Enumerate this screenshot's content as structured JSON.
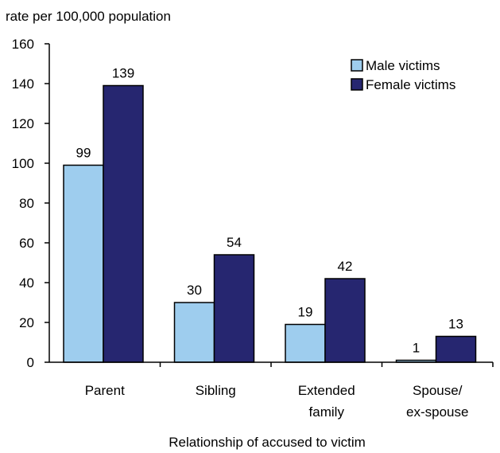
{
  "chart_data": {
    "type": "bar",
    "title": "",
    "ylabel": "rate per 100,000 population",
    "xlabel": "Relationship of accused to victim",
    "ylim": [
      0,
      160
    ],
    "yticks": [
      0,
      20,
      40,
      60,
      80,
      100,
      120,
      140,
      160
    ],
    "categories": [
      [
        "Parent"
      ],
      [
        "Sibling"
      ],
      [
        "Extended",
        "family"
      ],
      [
        "Spouse/",
        "ex-spouse"
      ]
    ],
    "series": [
      {
        "name": "Male victims",
        "values": [
          99,
          30,
          19,
          1
        ],
        "color": "#9ecdee"
      },
      {
        "name": "Female victims",
        "values": [
          139,
          54,
          42,
          13
        ],
        "color": "#262670"
      }
    ],
    "legend_position": "top-right",
    "grid": false
  }
}
